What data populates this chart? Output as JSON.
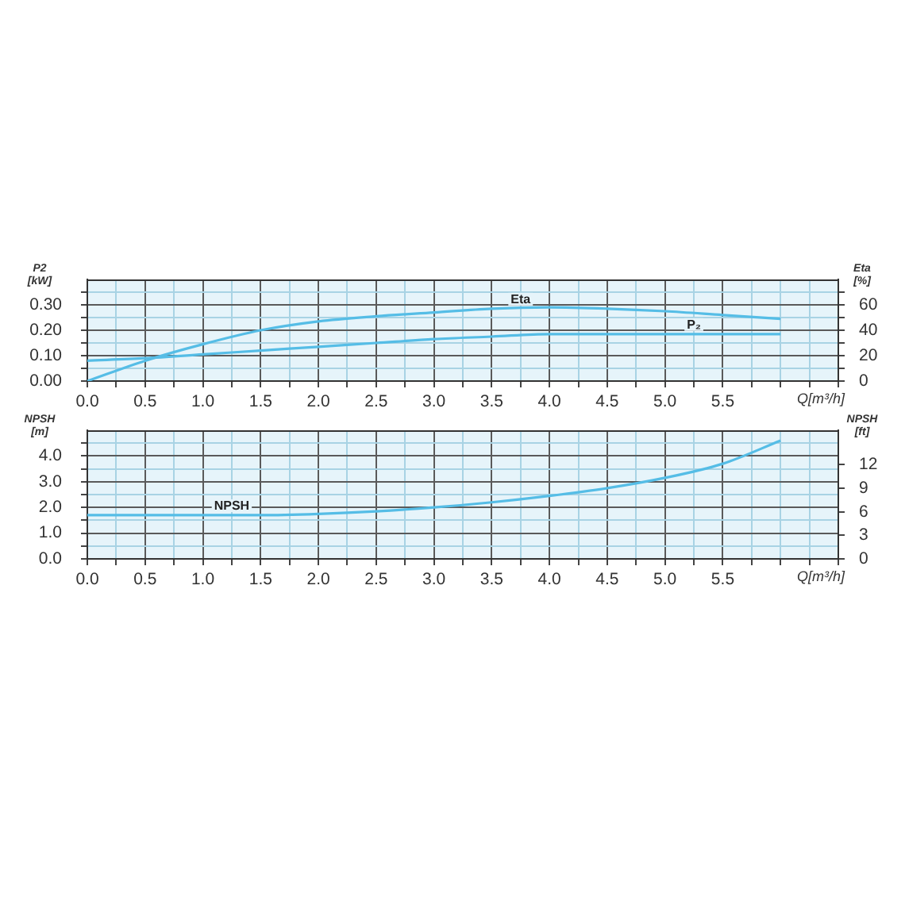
{
  "chart_data": [
    {
      "type": "line",
      "xlabel": "Q[m³/h]",
      "ylabel": "P2 [kW]",
      "y2label": "Eta [%]",
      "x": [
        0,
        0.5,
        1,
        1.5,
        2,
        2.5,
        3,
        3.5,
        4,
        4.5,
        5,
        5.5,
        6
      ],
      "series": [
        {
          "name": "Eta",
          "color": "#55bde6",
          "axis": "y2",
          "values": [
            0,
            16,
            29,
            40,
            47,
            51,
            54,
            57,
            58,
            57,
            55,
            52,
            49
          ]
        },
        {
          "name": "P₂",
          "color": "#55bde6",
          "values": [
            0.08,
            0.09,
            0.105,
            0.12,
            0.135,
            0.15,
            0.165,
            0.175,
            0.185,
            0.185,
            0.185,
            0.185,
            0.185
          ]
        }
      ],
      "xlim": [
        0,
        6.5
      ],
      "xticks": [
        {
          "value": 0,
          "label": "0.0"
        },
        {
          "value": 0.25,
          "label": null
        },
        {
          "value": 0.5,
          "label": "0.5"
        },
        {
          "value": 0.75,
          "label": null
        },
        {
          "value": 1,
          "label": "1.0"
        },
        {
          "value": 1.25,
          "label": null
        },
        {
          "value": 1.5,
          "label": "1.5"
        },
        {
          "value": 1.75,
          "label": null
        },
        {
          "value": 2,
          "label": "2.0"
        },
        {
          "value": 2.25,
          "label": null
        },
        {
          "value": 2.5,
          "label": "2.5"
        },
        {
          "value": 2.75,
          "label": null
        },
        {
          "value": 3,
          "label": "3.0"
        },
        {
          "value": 3.25,
          "label": null
        },
        {
          "value": 3.5,
          "label": "3.5"
        },
        {
          "value": 3.75,
          "label": null
        },
        {
          "value": 4,
          "label": "4.0"
        },
        {
          "value": 4.25,
          "label": null
        },
        {
          "value": 4.5,
          "label": "4.5"
        },
        {
          "value": 4.75,
          "label": null
        },
        {
          "value": 5,
          "label": "5.0"
        },
        {
          "value": 5.25,
          "label": null
        },
        {
          "value": 5.5,
          "label": "5.5"
        },
        {
          "value": 5.75,
          "label": null
        },
        {
          "value": 6,
          "label": null
        },
        {
          "value": 6.25,
          "label": null
        },
        {
          "value": 6.5,
          "label": null
        }
      ],
      "ylim": [
        0,
        0.4
      ],
      "yticks": [
        {
          "value": 0,
          "label": "0.00"
        },
        {
          "value": 0.05,
          "label": null
        },
        {
          "value": 0.1,
          "label": "0.10"
        },
        {
          "value": 0.15,
          "label": null
        },
        {
          "value": 0.2,
          "label": "0.20"
        },
        {
          "value": 0.25,
          "label": null
        },
        {
          "value": 0.3,
          "label": "0.30"
        },
        {
          "value": 0.35,
          "label": null
        }
      ],
      "y2lim": [
        0,
        80
      ],
      "y2ticks": [
        0,
        {
          "value": 10,
          "label": null
        },
        20,
        {
          "value": 30,
          "label": null
        },
        40,
        {
          "value": 50,
          "label": null
        },
        60,
        {
          "value": 70,
          "label": null
        }
      ],
      "grid": true,
      "marker": "none"
    },
    {
      "type": "line",
      "xlabel": "Q[m³/h]",
      "ylabel": "NPSH [m]",
      "y2label": "NPSH [ft]",
      "x": [
        0,
        0.5,
        1,
        1.5,
        2,
        2.5,
        3,
        3.5,
        4,
        4.5,
        5,
        5.5,
        6
      ],
      "series": [
        {
          "name": "NPSH",
          "color": "#55bde6",
          "values": [
            1.7,
            1.7,
            1.7,
            1.7,
            1.75,
            1.85,
            2,
            2.2,
            2.45,
            2.75,
            3.15,
            3.7,
            4.6
          ]
        }
      ],
      "xlim": [
        0,
        6.5
      ],
      "xticks": [
        {
          "value": 0,
          "label": "0.0"
        },
        {
          "value": 0.25,
          "label": null
        },
        {
          "value": 0.5,
          "label": "0.5"
        },
        {
          "value": 0.75,
          "label": null
        },
        {
          "value": 1,
          "label": "1.0"
        },
        {
          "value": 1.25,
          "label": null
        },
        {
          "value": 1.5,
          "label": "1.5"
        },
        {
          "value": 1.75,
          "label": null
        },
        {
          "value": 2,
          "label": "2.0"
        },
        {
          "value": 2.25,
          "label": null
        },
        {
          "value": 2.5,
          "label": "2.5"
        },
        {
          "value": 2.75,
          "label": null
        },
        {
          "value": 3,
          "label": "3.0"
        },
        {
          "value": 3.25,
          "label": null
        },
        {
          "value": 3.5,
          "label": "3.5"
        },
        {
          "value": 3.75,
          "label": null
        },
        {
          "value": 4,
          "label": "4.0"
        },
        {
          "value": 4.25,
          "label": null
        },
        {
          "value": 4.5,
          "label": "4.5"
        },
        {
          "value": 4.75,
          "label": null
        },
        {
          "value": 5,
          "label": "5.0"
        },
        {
          "value": 5.25,
          "label": null
        },
        {
          "value": 5.5,
          "label": "5.5"
        },
        {
          "value": 5.75,
          "label": null
        },
        {
          "value": 6,
          "label": null
        },
        {
          "value": 6.25,
          "label": null
        },
        {
          "value": 6.5,
          "label": null
        }
      ],
      "ylim": [
        0,
        5
      ],
      "yticks": [
        {
          "value": 0,
          "label": "0.0"
        },
        {
          "value": 0.5,
          "label": null
        },
        {
          "value": 1,
          "label": "1.0"
        },
        {
          "value": 1.5,
          "label": null
        },
        {
          "value": 2,
          "label": "2.0"
        },
        {
          "value": 2.5,
          "label": null
        },
        {
          "value": 3,
          "label": "3.0"
        },
        {
          "value": 3.5,
          "label": null
        },
        {
          "value": 4,
          "label": "4.0"
        },
        {
          "value": 4.5,
          "label": null
        }
      ],
      "y2lim": [
        0,
        16.4
      ],
      "y2ticks": [
        0,
        3,
        6,
        9,
        12
      ],
      "grid": true,
      "marker": "none"
    }
  ]
}
